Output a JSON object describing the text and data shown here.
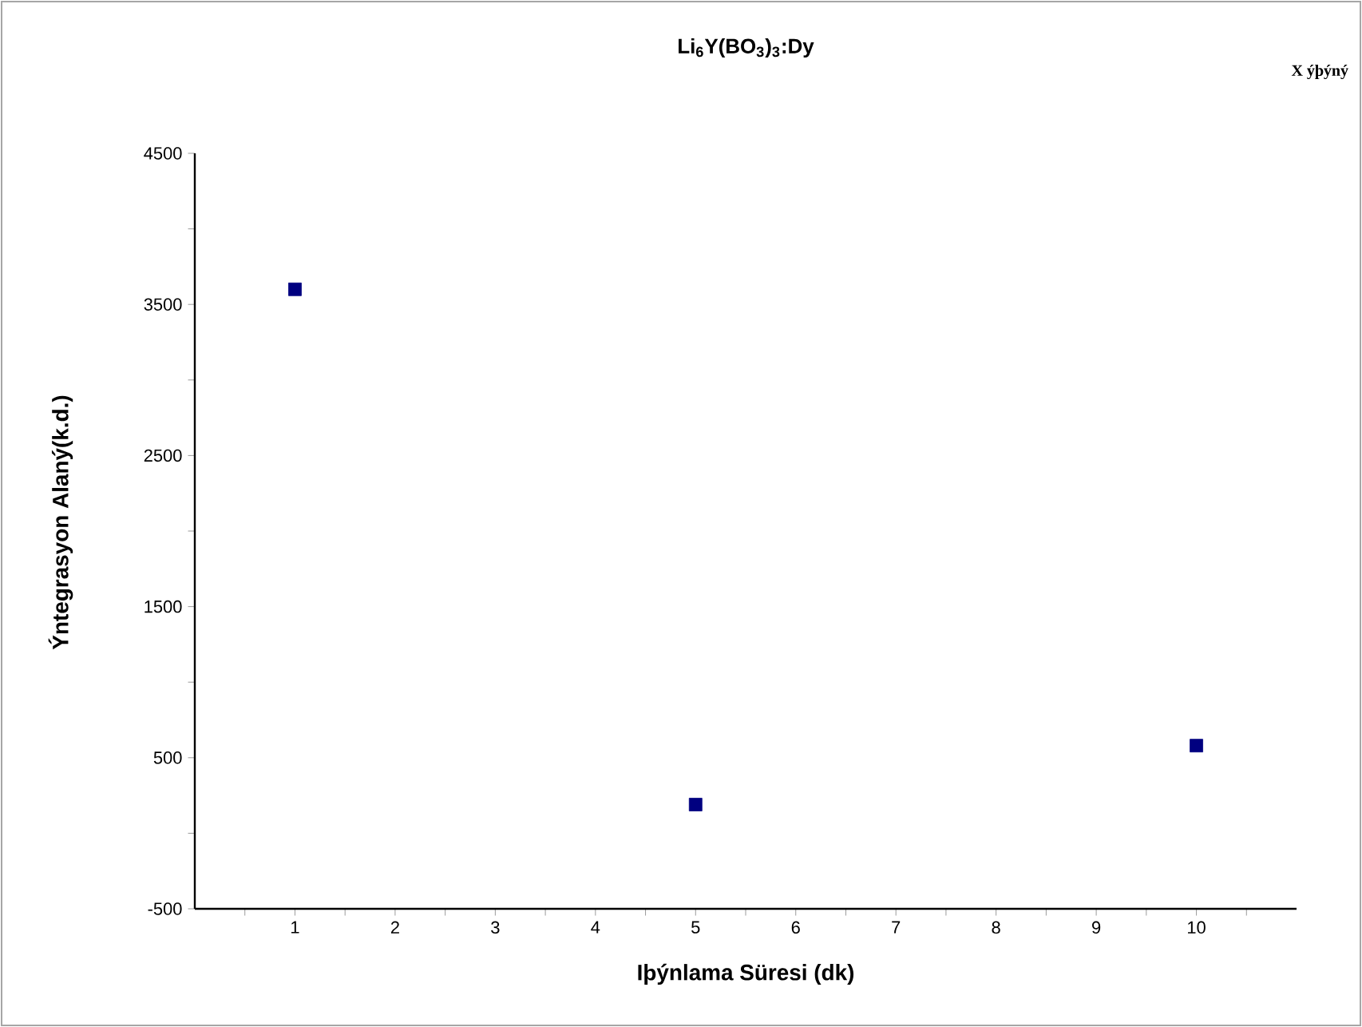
{
  "chart_data": {
    "type": "scatter",
    "title": "Li$_{6}$Y(BO$_{3}$)$_{3}$:Dy",
    "xlabel": "Iþýnlama Süresi (dk)",
    "ylabel": "Ýntegrasyon Alaný(k.d.)",
    "annotations": [
      "X ýþýný"
    ],
    "series": [
      {
        "color": "#000080",
        "x": [
          1,
          5,
          10
        ],
        "values": [
          3600,
          190,
          580
        ]
      }
    ],
    "marker": "square",
    "grid": false,
    "xlim": [
      0,
      11
    ],
    "xticks": [
      {
        "value": 0.5,
        "label": null
      },
      1,
      {
        "value": 1.5,
        "label": null
      },
      2,
      {
        "value": 2.5,
        "label": null
      },
      3,
      {
        "value": 3.5,
        "label": null
      },
      4,
      {
        "value": 4.5,
        "label": null
      },
      5,
      {
        "value": 5.5,
        "label": null
      },
      6,
      {
        "value": 6.5,
        "label": null
      },
      7,
      {
        "value": 7.5,
        "label": null
      },
      8,
      {
        "value": 8.5,
        "label": null
      },
      9,
      {
        "value": 9.5,
        "label": null
      },
      10,
      {
        "value": 10.5,
        "label": null
      }
    ],
    "ylim": [
      -500,
      4500
    ],
    "yticks": [
      -500,
      {
        "value": 0,
        "label": null
      },
      500,
      {
        "value": 1000,
        "label": null
      },
      1500,
      {
        "value": 2000,
        "label": null
      },
      2500,
      {
        "value": 3000,
        "label": null
      },
      3500,
      {
        "value": 4000,
        "label": null
      },
      4500
    ]
  }
}
